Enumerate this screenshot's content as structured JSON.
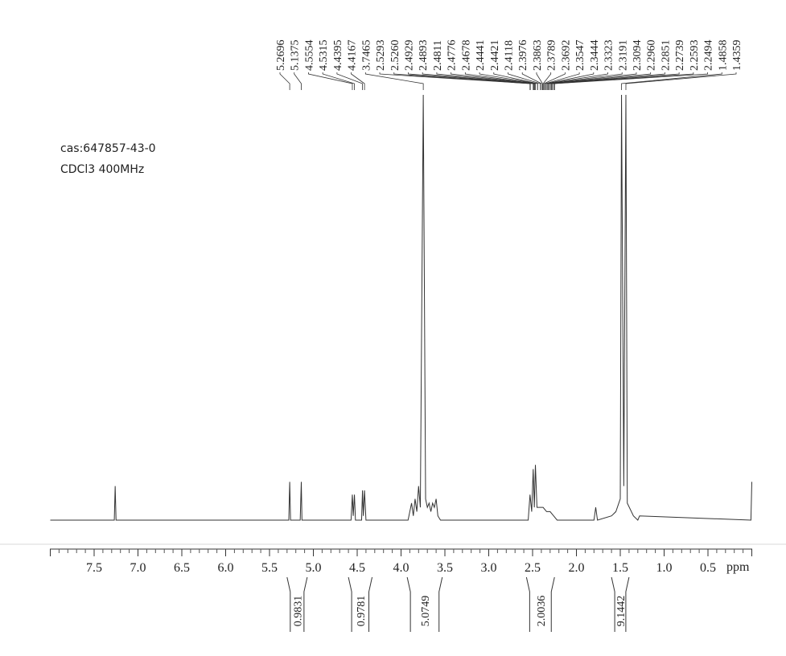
{
  "chart_data": {
    "type": "nmr",
    "annotations": [
      "cas:647857-43-0",
      "CDCl3  400MHz"
    ],
    "xlabel": "ppm",
    "xlim": [
      8.0,
      0.0
    ],
    "xticks": [
      7.5,
      {
        "value": 7.0,
        "label": "7.0"
      },
      6.5,
      {
        "value": 6.0,
        "label": "6.0"
      },
      5.5,
      {
        "value": 5.0,
        "label": "5.0"
      },
      4.5,
      {
        "value": 4.0,
        "label": "4.0"
      },
      3.5,
      {
        "value": 3.0,
        "label": "3.0"
      },
      2.5,
      {
        "value": 2.0,
        "label": "2.0"
      },
      1.5,
      {
        "value": 1.0,
        "label": "1.0"
      },
      0.5
    ],
    "ylim": [
      0,
      100
    ],
    "color": "#333333",
    "x": [
      8.0,
      7.27,
      7.26,
      7.25,
      5.28,
      5.2696,
      5.26,
      5.15,
      5.1375,
      5.13,
      4.57,
      4.5554,
      4.545,
      4.5315,
      4.52,
      4.45,
      4.4395,
      4.43,
      4.4167,
      4.4,
      3.92,
      3.88,
      3.86,
      3.84,
      3.82,
      3.8,
      3.78,
      3.7465,
      3.72,
      3.7,
      3.68,
      3.66,
      3.64,
      3.62,
      3.6,
      3.58,
      3.55,
      2.55,
      2.5293,
      2.51,
      2.4929,
      2.48,
      2.4678,
      2.45,
      2.42,
      2.38,
      2.34,
      2.3,
      2.26,
      2.22,
      1.8,
      1.78,
      1.76,
      1.6,
      1.55,
      1.5,
      1.4858,
      1.46,
      1.4359,
      1.42,
      1.35,
      1.3,
      1.28,
      0.01,
      0.0
    ],
    "values": [
      0,
      0,
      8,
      0,
      0,
      9,
      0,
      0,
      9,
      0,
      0,
      6,
      1,
      6,
      0,
      0,
      7,
      1,
      7,
      0,
      0,
      4,
      1,
      5,
      2,
      8,
      3,
      100,
      5,
      3,
      4,
      2,
      4,
      3,
      5,
      1,
      0,
      0,
      6,
      2,
      12,
      3,
      13,
      3,
      3,
      3,
      2,
      2,
      1,
      0,
      0,
      3,
      0,
      1,
      2,
      5,
      100,
      8,
      100,
      4,
      1,
      0,
      1,
      0,
      9
    ],
    "peaks": [
      5.2696,
      5.1375,
      4.5554,
      4.5315,
      4.4395,
      4.4167,
      3.7465,
      2.5293,
      {
        "value": 2.526,
        "label": "2.5260"
      },
      2.4929,
      2.4893,
      2.4811,
      2.4776,
      2.4678,
      2.4441,
      2.4421,
      2.4118,
      2.3976,
      2.3863,
      2.3789,
      2.3692,
      2.3547,
      2.3444,
      2.3323,
      2.3191,
      2.3094,
      {
        "value": 2.296,
        "label": "2.2960"
      },
      2.2851,
      2.2739,
      2.2593,
      2.2494,
      1.4858,
      1.4359
    ],
    "integrals": [
      {
        "from": 5.3,
        "to": 5.07,
        "value": 0.9831
      },
      {
        "from": 4.6,
        "to": 4.33,
        "value": 0.9781
      },
      {
        "from": 3.93,
        "to": 3.53,
        "value": 5.0749
      },
      {
        "from": 2.57,
        "to": 2.25,
        "value": 2.0036
      },
      {
        "from": 1.6,
        "to": 1.4,
        "value": 9.1442
      }
    ]
  }
}
